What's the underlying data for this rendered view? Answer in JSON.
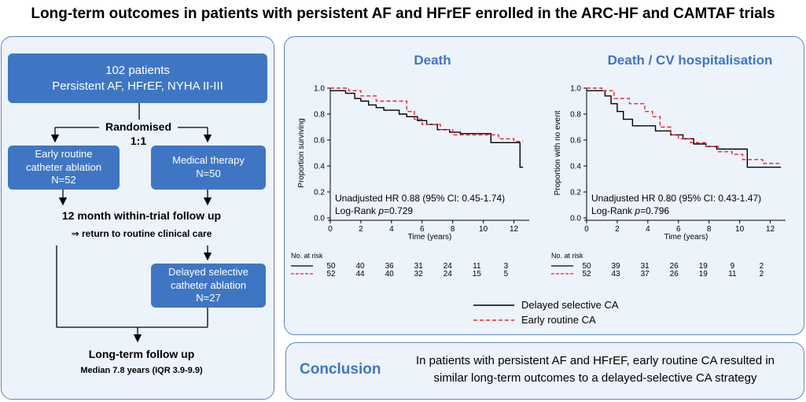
{
  "title": "Long-term outcomes in patients with persistent AF and HFrEF enrolled in the ARC-HF and CAMTAF trials",
  "flowchart": {
    "enrol_line1": "102 patients",
    "enrol_line2": "Persistent AF, HFrEF, NYHA II-III",
    "randomised": "Randomised",
    "ratio": "1:1",
    "arm_a_line1": "Early routine",
    "arm_a_line2": "catheter ablation",
    "arm_a_line3": "N=52",
    "arm_b_line1": "Medical therapy",
    "arm_b_line2": "N=50",
    "followup": "12 month within-trial follow up",
    "return_care": "⇒ return to routine clinical care",
    "delayed_line1": "Delayed selective",
    "delayed_line2": "catheter ablation",
    "delayed_line3": "N=27",
    "longterm": "Long-term follow up",
    "median": "Median 7.8 years (IQR 3.9-9.9)"
  },
  "legend": {
    "delayed": "Delayed selective CA",
    "early": "Early routine CA"
  },
  "colors": {
    "accent": "#3f76c3",
    "panel_bg": "#edf3fb",
    "early": "#e8262a",
    "delayed": "#000000"
  },
  "conclusion": {
    "label": "Conclusion",
    "line1": "In patients with persistent AF and HFrEF, early routine CA resulted in",
    "line2": "similar long-term outcomes to a delayed-selective CA strategy"
  },
  "chart_data": [
    {
      "type": "line",
      "title": "Death",
      "xlabel": "Time (years)",
      "ylabel": "Proportion surviving",
      "xlim": [
        0,
        13
      ],
      "ylim": [
        0,
        1
      ],
      "xticks": [
        0,
        2,
        4,
        6,
        8,
        10,
        12
      ],
      "yticks": [
        0.0,
        0.2,
        0.4,
        0.6,
        0.8,
        1.0
      ],
      "x_tick_labels": [
        "0",
        "2",
        "4",
        "6",
        "8",
        "10",
        "12"
      ],
      "y_tick_labels": [
        "0.0",
        "0.2",
        "0.4",
        "0.6",
        "0.8",
        "1.0"
      ],
      "annotation": "Unadjusted HR  0.88 (95% CI: 0.45-1.74)",
      "logrank_prefix": "Log-Rank ",
      "logrank_p": "p",
      "logrank_value": "=0.729",
      "series": [
        {
          "name": "Delayed selective CA",
          "step": true,
          "x": [
            0,
            1.0,
            1.6,
            2.0,
            2.5,
            3.0,
            3.5,
            4.5,
            5.0,
            5.7,
            6.3,
            7.0,
            7.8,
            8.5,
            10.5,
            12.4,
            12.6
          ],
          "y": [
            0.98,
            0.96,
            0.92,
            0.9,
            0.87,
            0.85,
            0.83,
            0.8,
            0.78,
            0.75,
            0.72,
            0.68,
            0.66,
            0.65,
            0.58,
            0.39,
            0.39
          ]
        },
        {
          "name": "Early routine CA",
          "step": true,
          "x": [
            0,
            1.2,
            2.0,
            3.0,
            5.0,
            5.5,
            6.0,
            7.2,
            8.0,
            10.0,
            11.0,
            12.0,
            12.6
          ],
          "y": [
            1.0,
            0.98,
            0.94,
            0.9,
            0.82,
            0.76,
            0.72,
            0.68,
            0.64,
            0.64,
            0.61,
            0.59,
            0.59
          ]
        }
      ],
      "risk_table": {
        "label": "No. at risk",
        "times": [
          0,
          2,
          4,
          6,
          8,
          10,
          12
        ],
        "rows": [
          {
            "series": "Delayed selective CA",
            "values": [
              "50",
              "40",
              "36",
              "31",
              "24",
              "11",
              "3"
            ]
          },
          {
            "series": "Early routine CA",
            "values": [
              "52",
              "44",
              "40",
              "32",
              "24",
              "15",
              "5"
            ]
          }
        ]
      }
    },
    {
      "type": "line",
      "title": "Death / CV hospitalisation",
      "xlabel": "Time (years)",
      "ylabel": "Proportion with no event",
      "xlim": [
        0,
        13
      ],
      "ylim": [
        0,
        1
      ],
      "xticks": [
        0,
        2,
        4,
        6,
        8,
        10,
        12
      ],
      "yticks": [
        0.0,
        0.2,
        0.4,
        0.6,
        0.8,
        1.0
      ],
      "x_tick_labels": [
        "0",
        "2",
        "4",
        "6",
        "8",
        "10",
        "12"
      ],
      "y_tick_labels": [
        "0.0",
        "0.2",
        "0.4",
        "0.6",
        "0.8",
        "1.0"
      ],
      "annotation": "Unadjusted HR  0.80 (95% CI: 0.43-1.47)",
      "logrank_prefix": "Log-Rank ",
      "logrank_p": "p",
      "logrank_value": "=0.796",
      "series": [
        {
          "name": "Delayed selective CA",
          "step": true,
          "x": [
            0,
            1.2,
            1.6,
            2.0,
            2.4,
            3.0,
            4.5,
            5.5,
            6.3,
            7.0,
            7.8,
            8.5,
            10.5,
            12.7
          ],
          "y": [
            0.98,
            0.94,
            0.88,
            0.82,
            0.76,
            0.71,
            0.67,
            0.64,
            0.61,
            0.57,
            0.55,
            0.53,
            0.39,
            0.39
          ]
        },
        {
          "name": "Early routine CA",
          "step": true,
          "x": [
            0,
            1.0,
            1.8,
            2.8,
            3.8,
            4.3,
            4.8,
            5.5,
            6.0,
            6.8,
            7.8,
            8.6,
            9.5,
            10.2,
            11.5,
            12.7
          ],
          "y": [
            1.0,
            0.98,
            0.92,
            0.88,
            0.82,
            0.78,
            0.7,
            0.64,
            0.61,
            0.58,
            0.55,
            0.51,
            0.49,
            0.45,
            0.42,
            0.42
          ]
        }
      ],
      "risk_table": {
        "label": "No. at risk",
        "times": [
          0,
          2,
          4,
          6,
          8,
          10,
          12
        ],
        "rows": [
          {
            "series": "Delayed selective CA",
            "values": [
              "50",
              "39",
              "31",
              "26",
              "19",
              "9",
              "2"
            ]
          },
          {
            "series": "Early routine CA",
            "values": [
              "52",
              "43",
              "37",
              "26",
              "19",
              "11",
              "2"
            ]
          }
        ]
      }
    }
  ]
}
